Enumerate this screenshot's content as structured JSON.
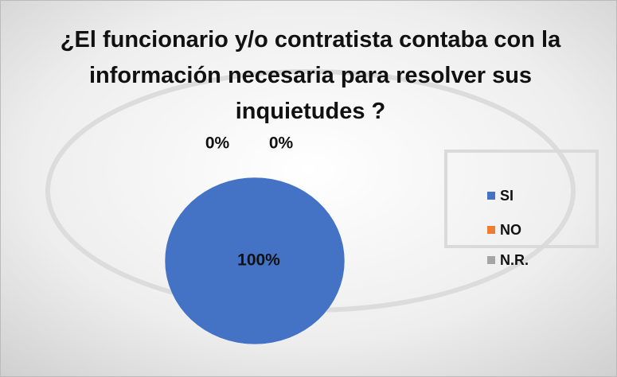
{
  "chart_data": {
    "type": "pie",
    "title": "¿El funcionario y/o contratista contaba con la información necesaria para resolver sus inquietudes ?",
    "categories": [
      "SI",
      "NO",
      "N.R."
    ],
    "values": [
      100,
      0,
      0
    ],
    "value_labels": [
      "100%",
      "0%",
      "0%"
    ],
    "colors": [
      "#4472c4",
      "#ed7d31",
      "#a5a5a5"
    ],
    "legend": "right"
  }
}
